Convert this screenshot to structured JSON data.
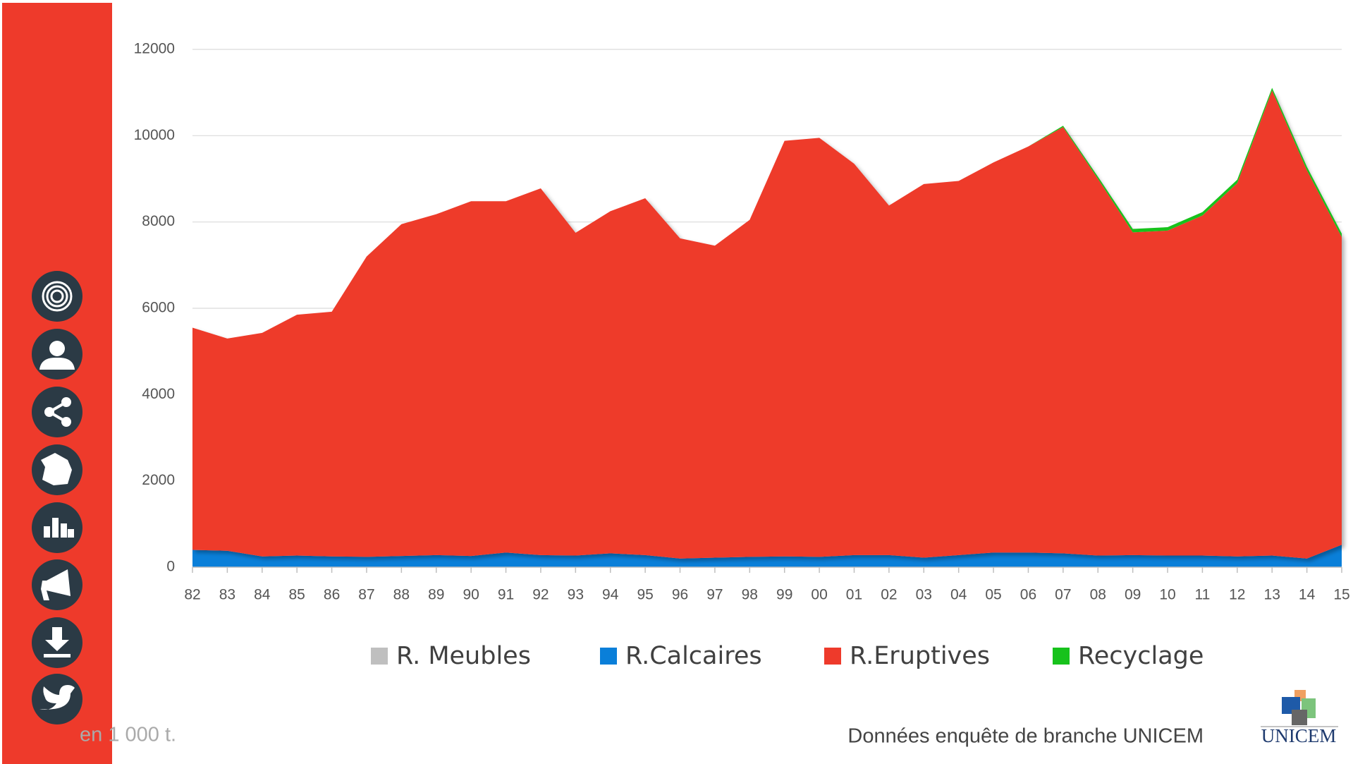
{
  "chart_data": {
    "type": "area",
    "stacked": true,
    "categories": [
      "82",
      "83",
      "84",
      "85",
      "86",
      "87",
      "88",
      "89",
      "90",
      "91",
      "92",
      "93",
      "94",
      "95",
      "96",
      "97",
      "98",
      "99",
      "00",
      "01",
      "02",
      "03",
      "04",
      "05",
      "06",
      "07",
      "08",
      "09",
      "10",
      "11",
      "12",
      "13",
      "14",
      "15"
    ],
    "series": [
      {
        "name": "R. Meubles",
        "color": "#bfbfbf",
        "values": [
          0,
          0,
          0,
          0,
          0,
          0,
          0,
          0,
          0,
          0,
          0,
          0,
          0,
          0,
          0,
          0,
          0,
          0,
          0,
          0,
          0,
          0,
          0,
          0,
          0,
          0,
          0,
          0,
          0,
          0,
          0,
          0,
          0,
          0
        ]
      },
      {
        "name": "R.Calcaires",
        "color": "#0a7fd9",
        "values": [
          400,
          380,
          250,
          270,
          250,
          240,
          260,
          280,
          260,
          340,
          280,
          270,
          320,
          280,
          200,
          220,
          240,
          250,
          240,
          280,
          280,
          220,
          280,
          340,
          340,
          320,
          270,
          280,
          270,
          270,
          250,
          270,
          200,
          520
        ]
      },
      {
        "name": "R.Eruptives",
        "color": "#ee3a2b",
        "values": [
          5150,
          4920,
          5180,
          5580,
          5670,
          6960,
          7690,
          7900,
          8220,
          8140,
          8500,
          7480,
          7930,
          8270,
          7420,
          7230,
          7810,
          9630,
          9710,
          9070,
          8100,
          8660,
          8670,
          9040,
          9410,
          9880,
          8730,
          7480,
          7530,
          7880,
          8650,
          10780,
          9000,
          7130
        ]
      },
      {
        "name": "Recyclage",
        "color": "#17c21c",
        "values": [
          0,
          0,
          0,
          0,
          0,
          0,
          0,
          0,
          0,
          0,
          0,
          0,
          0,
          0,
          0,
          0,
          0,
          0,
          0,
          0,
          0,
          0,
          0,
          0,
          0,
          30,
          50,
          80,
          80,
          80,
          80,
          60,
          80,
          80
        ]
      }
    ],
    "ylim": [
      0,
      12000
    ],
    "yticks": [
      0,
      2000,
      4000,
      6000,
      8000,
      10000,
      12000
    ],
    "grid": true,
    "legend": "bottom",
    "unit_note": "en 1 000 t.",
    "source": "Données enquête de branche UNICEM",
    "logo": "UNICEM"
  }
}
